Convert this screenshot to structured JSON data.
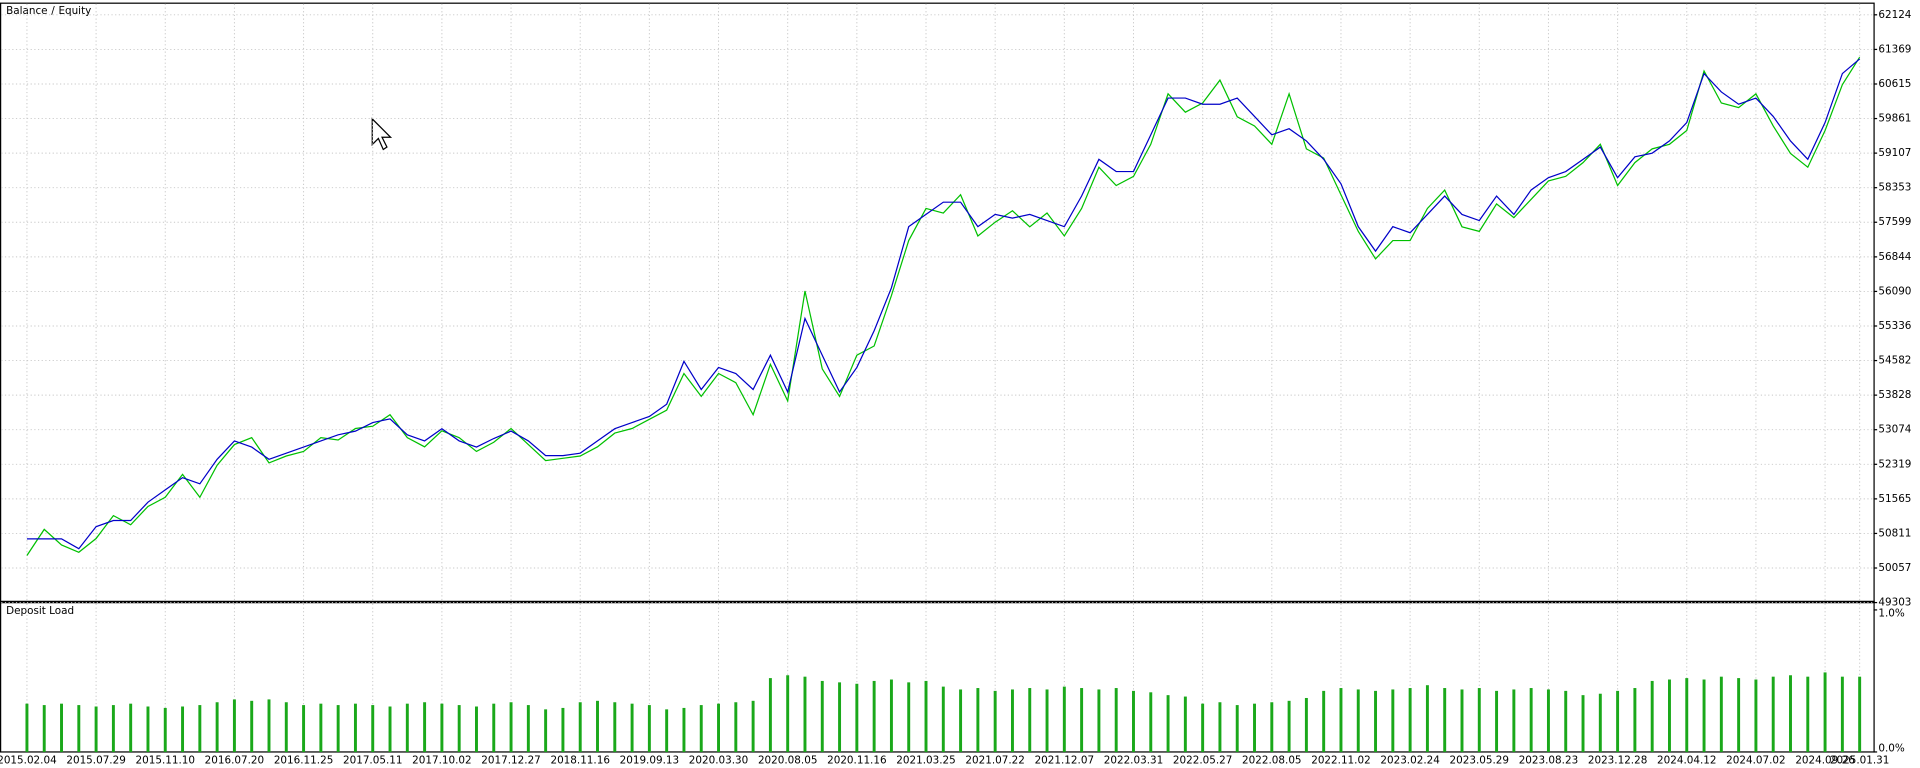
{
  "chart_data": [
    {
      "type": "line",
      "legend_separator": "/",
      "categories": [
        "2015.02.04",
        null,
        null,
        null,
        "2015.07.29",
        null,
        null,
        null,
        "2015.11.10",
        null,
        null,
        null,
        "2016.07.20",
        null,
        null,
        null,
        "2016.11.25",
        null,
        null,
        null,
        "2017.05.11",
        null,
        null,
        null,
        "2017.10.02",
        null,
        null,
        null,
        "2017.12.27",
        null,
        null,
        null,
        "2018.11.16",
        null,
        null,
        null,
        "2019.09.13",
        null,
        null,
        null,
        "2020.03.30",
        null,
        null,
        null,
        "2020.08.05",
        null,
        null,
        null,
        "2020.11.16",
        null,
        null,
        null,
        "2021.03.25",
        null,
        null,
        null,
        "2021.07.22",
        null,
        null,
        null,
        "2021.12.07",
        null,
        null,
        null,
        "2022.03.31",
        null,
        null,
        null,
        "2022.05.27",
        null,
        null,
        null,
        "2022.08.05",
        null,
        null,
        null,
        "2022.11.02",
        null,
        null,
        null,
        "2023.02.24",
        null,
        null,
        null,
        "2023.05.29",
        null,
        null,
        null,
        "2023.08.23",
        null,
        null,
        null,
        "2023.12.28",
        null,
        null,
        null,
        "2024.04.12",
        null,
        null,
        null,
        "2024.07.02",
        null,
        null,
        null,
        "2024.09.26",
        null,
        "2025.01.31"
      ],
      "series": [
        {
          "name": "Balance",
          "color": "#0000c8",
          "values": [
            50692,
            50692,
            50692,
            50478,
            50959,
            51093,
            51093,
            51493,
            51761,
            52028,
            51894,
            52428,
            52829,
            52695,
            52428,
            52562,
            52695,
            52829,
            52962,
            53043,
            53230,
            53310,
            52962,
            52829,
            53096,
            52829,
            52695,
            52882,
            53043,
            52829,
            52508,
            52508,
            52562,
            52829,
            53096,
            53230,
            53363,
            53630,
            54565,
            53951,
            54432,
            54298,
            53951,
            54699,
            53897,
            55500,
            54699,
            53897,
            54432,
            55233,
            56168,
            57503,
            57770,
            58037,
            58037,
            57503,
            57770,
            57690,
            57770,
            57637,
            57503,
            58171,
            58972,
            58705,
            58705,
            59506,
            60308,
            60308,
            60174,
            60174,
            60308,
            59907,
            59506,
            59640,
            59373,
            58972,
            58438,
            57503,
            56969,
            57503,
            57370,
            57770,
            58171,
            57770,
            57637,
            58171,
            57770,
            58304,
            58572,
            58705,
            58972,
            59239,
            58572,
            59026,
            59106,
            59373,
            59774,
            60842,
            60441,
            60174,
            60308,
            59907,
            59373,
            58972,
            59774,
            60842,
            61162
          ]
        },
        {
          "name": "Equity",
          "color": "#00c000",
          "values": [
            50330,
            50900,
            50560,
            50400,
            50700,
            51200,
            51000,
            51400,
            51600,
            52100,
            51600,
            52300,
            52750,
            52900,
            52350,
            52500,
            52600,
            52900,
            52850,
            53100,
            53150,
            53400,
            52900,
            52700,
            53050,
            52900,
            52600,
            52800,
            53100,
            52750,
            52400,
            52450,
            52500,
            52700,
            53000,
            53100,
            53300,
            53500,
            54300,
            53800,
            54300,
            54100,
            53400,
            54500,
            53700,
            56100,
            54400,
            53800,
            54700,
            54900,
            56000,
            57200,
            57900,
            57800,
            58200,
            57300,
            57600,
            57850,
            57500,
            57800,
            57300,
            57900,
            58800,
            58400,
            58600,
            59300,
            60400,
            60000,
            60200,
            60700,
            59900,
            59700,
            59300,
            60400,
            59200,
            59000,
            58200,
            57400,
            56800,
            57200,
            57200,
            57900,
            58300,
            57500,
            57400,
            58000,
            57700,
            58100,
            58500,
            58600,
            58900,
            59300,
            58400,
            58900,
            59200,
            59300,
            59600,
            60900,
            60200,
            60100,
            60400,
            59700,
            59100,
            58800,
            59600,
            60600,
            61200
          ]
        }
      ],
      "ylim": [
        49303,
        62124
      ],
      "yticks": [
        49303,
        50057,
        50811,
        51565,
        52319,
        53074,
        53828,
        54582,
        55336,
        56090,
        56844,
        57599,
        58353,
        59107,
        59861,
        60615,
        61369,
        62124
      ],
      "grid": true
    },
    {
      "type": "bar",
      "title": "Deposit Load",
      "color": "#1aa81a",
      "values": [
        0.34,
        0.33,
        0.34,
        0.33,
        0.32,
        0.33,
        0.34,
        0.32,
        0.31,
        0.32,
        0.33,
        0.35,
        0.37,
        0.36,
        0.37,
        0.35,
        0.33,
        0.34,
        0.33,
        0.34,
        0.33,
        0.32,
        0.34,
        0.35,
        0.34,
        0.33,
        0.32,
        0.34,
        0.35,
        0.33,
        0.3,
        0.31,
        0.35,
        0.36,
        0.35,
        0.34,
        0.33,
        0.3,
        0.31,
        0.33,
        0.34,
        0.35,
        0.36,
        0.52,
        0.54,
        0.53,
        0.5,
        0.49,
        0.48,
        0.5,
        0.51,
        0.49,
        0.5,
        0.46,
        0.44,
        0.45,
        0.43,
        0.44,
        0.45,
        0.44,
        0.46,
        0.45,
        0.44,
        0.45,
        0.43,
        0.42,
        0.4,
        0.39,
        0.34,
        0.35,
        0.33,
        0.34,
        0.35,
        0.36,
        0.38,
        0.43,
        0.45,
        0.44,
        0.43,
        0.44,
        0.45,
        0.47,
        0.45,
        0.44,
        0.45,
        0.43,
        0.44,
        0.45,
        0.44,
        0.43,
        0.4,
        0.41,
        0.43,
        0.45,
        0.5,
        0.51,
        0.52,
        0.51,
        0.53,
        0.52,
        0.51,
        0.53,
        0.54,
        0.53,
        0.56,
        0.53,
        0.53
      ],
      "ylim": [
        0,
        1
      ],
      "yticks": [
        {
          "value": 0,
          "label": "0.0%"
        },
        {
          "value": 1,
          "label": "1.0%"
        }
      ],
      "grid": true
    }
  ]
}
